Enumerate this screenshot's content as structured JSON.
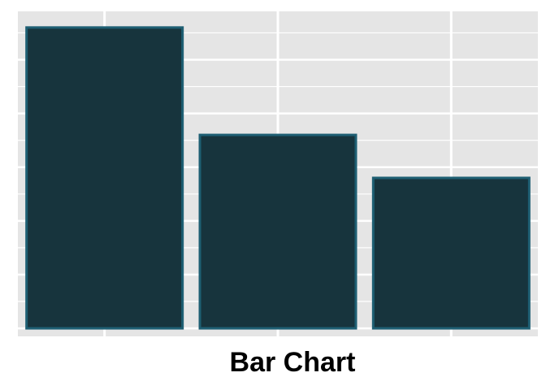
{
  "chart_data": {
    "type": "bar",
    "title": "Bar Chart",
    "xlabel": "",
    "ylabel": "",
    "categories": [
      "",
      "",
      ""
    ],
    "values": [
      56,
      36,
      28
    ],
    "ylim": [
      -1.5,
      59
    ],
    "grid": true,
    "legend": "none",
    "colors": {
      "panel_background": "#e5e5e5",
      "grid": "#ffffff",
      "bar_fill": "#17343d",
      "bar_stroke": "#1e5f73"
    }
  }
}
